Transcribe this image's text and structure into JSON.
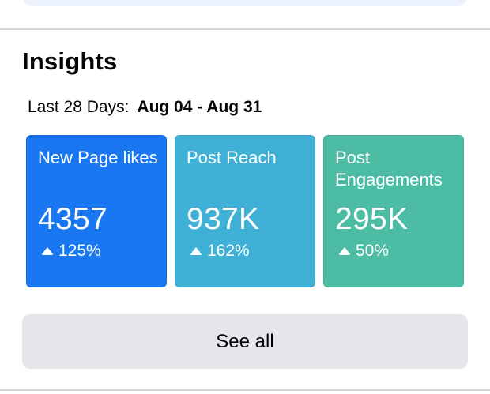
{
  "insights": {
    "title": "Insights",
    "range_label": "Last 28 Days:",
    "range_value": "Aug 04 - Aug 31",
    "cards": [
      {
        "label": "New Page likes",
        "value": "4357",
        "change": "125%",
        "color": "#1977f2",
        "icon": "up-arrow-icon"
      },
      {
        "label": "Post Reach",
        "value": "937K",
        "change": "162%",
        "color": "#3fb0d6",
        "icon": "up-arrow-icon"
      },
      {
        "label": "Post Engagements",
        "value": "295K",
        "change": "50%",
        "color": "#4dbca4",
        "icon": "up-arrow-icon"
      }
    ],
    "see_all_label": "See all"
  }
}
